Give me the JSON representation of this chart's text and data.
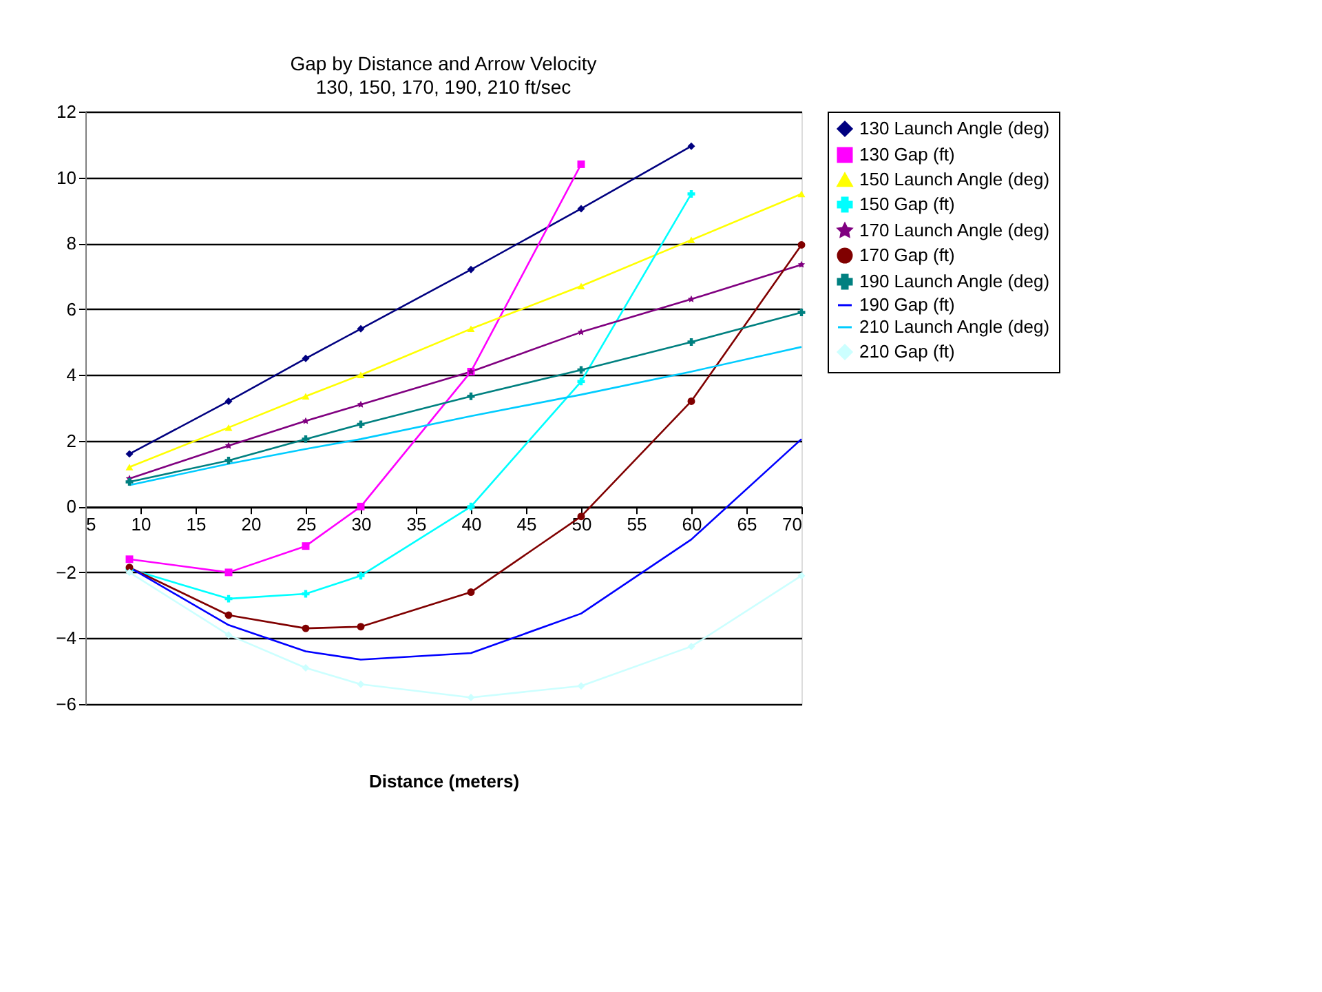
{
  "chart_data": {
    "type": "line",
    "title": "Gap by Distance and Arrow Velocity",
    "subtitle": "130, 150, 170, 190, 210 ft/sec",
    "xlabel": "Distance (meters)",
    "x": [
      9,
      18,
      25,
      30,
      40,
      50,
      60,
      70
    ],
    "xlim": [
      5,
      70
    ],
    "xticks": [
      5,
      10,
      15,
      20,
      25,
      30,
      35,
      40,
      45,
      50,
      55,
      60,
      65,
      70
    ],
    "ylim": [
      -6,
      12
    ],
    "yticks": [
      -6,
      -4,
      -2,
      0,
      2,
      4,
      6,
      8,
      10,
      12
    ],
    "grid": "y",
    "legend": "right",
    "series": [
      {
        "name": "130 Launch Angle (deg)",
        "color": "#000080",
        "marker": "diamond",
        "values": [
          1.6,
          3.2,
          4.5,
          5.4,
          7.2,
          9.05,
          10.95,
          null
        ]
      },
      {
        "name": "130 Gap (ft)",
        "color": "#ff00ff",
        "marker": "square",
        "values": [
          -1.6,
          -2.0,
          -1.2,
          0,
          4.1,
          10.4,
          null,
          null
        ]
      },
      {
        "name": "150 Launch Angle (deg)",
        "color": "#ffff00",
        "marker": "triangle",
        "values": [
          1.2,
          2.4,
          3.35,
          4.0,
          5.4,
          6.7,
          8.1,
          9.5
        ]
      },
      {
        "name": "150 Gap (ft)",
        "color": "#00ffff",
        "marker": "cross",
        "values": [
          -1.9,
          -2.8,
          -2.65,
          -2.1,
          0,
          3.8,
          9.5,
          null
        ]
      },
      {
        "name": "170 Launch Angle (deg)",
        "color": "#800080",
        "marker": "star",
        "values": [
          0.85,
          1.85,
          2.6,
          3.1,
          4.1,
          5.3,
          6.3,
          7.35
        ]
      },
      {
        "name": "170 Gap (ft)",
        "color": "#800000",
        "marker": "circle",
        "values": [
          -1.85,
          -3.3,
          -3.7,
          -3.65,
          -2.6,
          -0.3,
          3.2,
          7.95
        ]
      },
      {
        "name": "190 Launch Angle (deg)",
        "color": "#008080",
        "marker": "cross",
        "values": [
          0.75,
          1.4,
          2.05,
          2.5,
          3.35,
          4.15,
          5.0,
          5.9
        ]
      },
      {
        "name": "190 Gap (ft)",
        "color": "#0000ff",
        "marker": "none",
        "values": [
          -1.85,
          -3.6,
          -4.4,
          -4.65,
          -4.45,
          -3.25,
          -1.0,
          2.05
        ]
      },
      {
        "name": "210 Launch Angle (deg)",
        "color": "#00ccff",
        "marker": "none",
        "values": [
          0.65,
          1.3,
          1.75,
          2.05,
          2.75,
          3.4,
          4.1,
          4.85
        ]
      },
      {
        "name": "210 Gap (ft)",
        "color": "#ccffff",
        "marker": "diamond",
        "values": [
          -2.0,
          -3.9,
          -4.9,
          -5.4,
          -5.8,
          -5.45,
          -4.25,
          -2.1
        ]
      }
    ]
  }
}
